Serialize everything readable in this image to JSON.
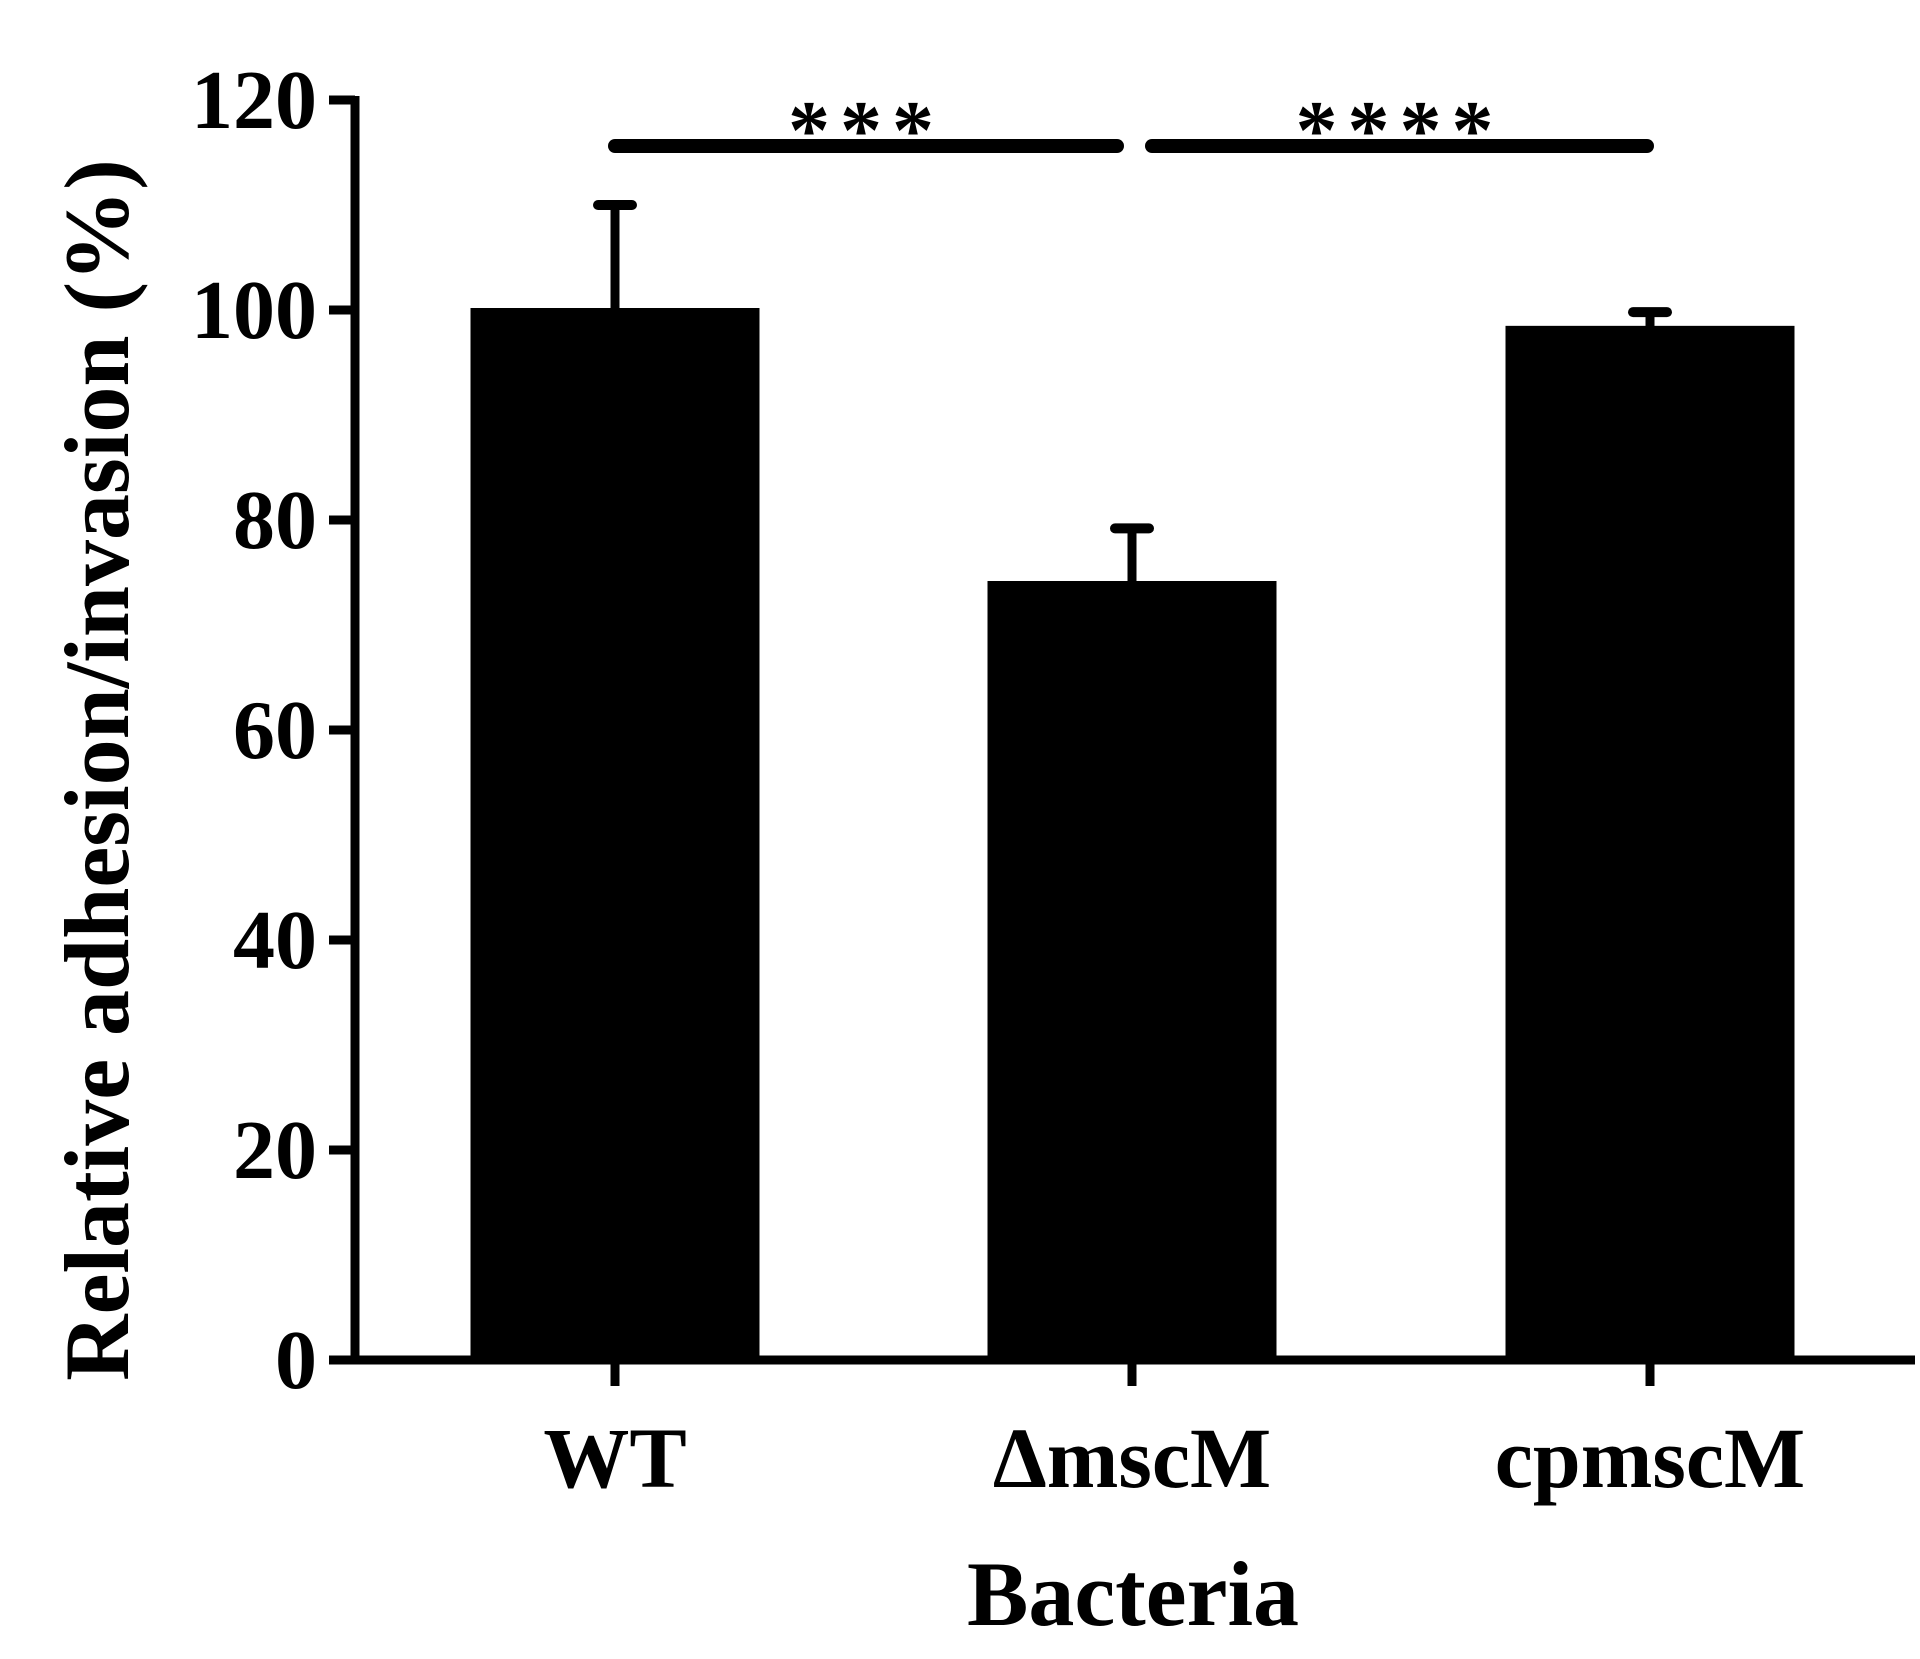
{
  "chart_data": {
    "type": "bar",
    "title": "",
    "xlabel": "Bacteria",
    "ylabel": "Relative adhesion/invasion (%)",
    "ylim": [
      0,
      120
    ],
    "yticks": [
      0,
      20,
      40,
      60,
      80,
      100,
      120
    ],
    "ytick_labels": [
      "0",
      "20",
      "40",
      "60",
      "80",
      "100",
      "120"
    ],
    "categories": [
      "WT",
      "ΔmscM",
      "cpmscM"
    ],
    "values": [
      100,
      74,
      98.3
    ],
    "error_upper": [
      10,
      5.2,
      1.5
    ],
    "bar_color": "#000000",
    "grid": false,
    "legend": "none",
    "significance": [
      {
        "from": 0,
        "to": 1,
        "label": "***"
      },
      {
        "from": 1,
        "to": 2,
        "label": "****"
      }
    ]
  }
}
